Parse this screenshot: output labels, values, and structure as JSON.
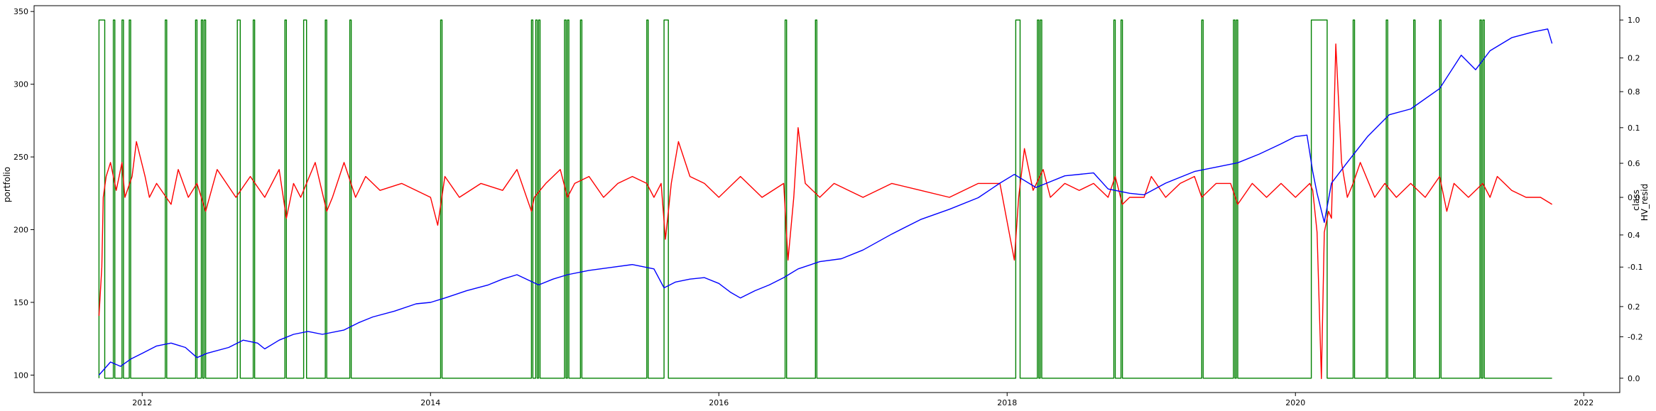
{
  "chart_data": {
    "type": "line",
    "title": "",
    "x_ticks": [
      "2012",
      "2014",
      "2016",
      "2018",
      "2020",
      "2022"
    ],
    "x_range": [
      2011.25,
      2022.25
    ],
    "left_axis": {
      "label": "portfolio",
      "ticks": [
        "100",
        "150",
        "200",
        "250",
        "300",
        "350"
      ],
      "range": [
        88,
        354
      ]
    },
    "right_axis_outer": {
      "label": "class",
      "ticks": [
        "0.0",
        "0.2",
        "0.4",
        "0.6",
        "0.8",
        "1.0"
      ],
      "range": [
        -0.04,
        1.04
      ]
    },
    "right_axis_inner": {
      "label": "HV_resid",
      "ticks": [
        "-0.2",
        "-0.1",
        "0.0",
        "0.1",
        "0.2"
      ],
      "range": [
        -0.28,
        0.275
      ]
    },
    "series": [
      {
        "name": "",
        "axis": "left",
        "color": "#0000ff",
        "x": [
          2011.7,
          2011.78,
          2011.85,
          2011.92,
          2012.0,
          2012.1,
          2012.2,
          2012.3,
          2012.38,
          2012.45,
          2012.6,
          2012.7,
          2012.8,
          2012.85,
          2012.95,
          2013.05,
          2013.15,
          2013.25,
          2013.4,
          2013.5,
          2013.6,
          2013.75,
          2013.9,
          2014.0,
          2014.1,
          2014.25,
          2014.4,
          2014.5,
          2014.6,
          2014.75,
          2014.85,
          2014.95,
          2015.1,
          2015.25,
          2015.4,
          2015.55,
          2015.62,
          2015.7,
          2015.8,
          2015.9,
          2016.0,
          2016.08,
          2016.15,
          2016.25,
          2016.35,
          2016.45,
          2016.55,
          2016.7,
          2016.85,
          2017.0,
          2017.2,
          2017.4,
          2017.6,
          2017.8,
          2017.95,
          2018.05,
          2018.2,
          2018.4,
          2018.6,
          2018.7,
          2018.85,
          2018.95,
          2019.1,
          2019.3,
          2019.45,
          2019.6,
          2019.75,
          2019.9,
          2020.0,
          2020.08,
          2020.12,
          2020.15,
          2020.2,
          2020.25,
          2020.35,
          2020.5,
          2020.65,
          2020.8,
          2021.0,
          2021.15,
          2021.25,
          2021.35,
          2021.5,
          2021.65,
          2021.75,
          2021.78
        ],
        "values": [
          100,
          109,
          106,
          111,
          115,
          120,
          122,
          119,
          112,
          115,
          119,
          124,
          122,
          118,
          124,
          128,
          130,
          128,
          131,
          136,
          140,
          144,
          149,
          150,
          153,
          158,
          162,
          166,
          169,
          162,
          166,
          169,
          172,
          174,
          176,
          173,
          160,
          164,
          166,
          167,
          163,
          157,
          153,
          158,
          162,
          167,
          173,
          178,
          180,
          186,
          197,
          207,
          214,
          222,
          232,
          238,
          229,
          237,
          239,
          228,
          225,
          224,
          232,
          240,
          243,
          246,
          252,
          259,
          264,
          265,
          240,
          225,
          205,
          232,
          245,
          264,
          279,
          283,
          297,
          320,
          310,
          323,
          332,
          336,
          338,
          328
        ]
      },
      {
        "name": "",
        "axis": "inner",
        "color": "#ff0000",
        "x": [
          2011.7,
          2011.72,
          2011.73,
          2011.75,
          2011.78,
          2011.82,
          2011.86,
          2011.88,
          2011.93,
          2011.96,
          2012.02,
          2012.05,
          2012.1,
          2012.2,
          2012.25,
          2012.32,
          2012.38,
          2012.44,
          2012.52,
          2012.65,
          2012.75,
          2012.85,
          2012.95,
          2013.0,
          2013.05,
          2013.1,
          2013.2,
          2013.28,
          2013.32,
          2013.4,
          2013.48,
          2013.55,
          2013.65,
          2013.8,
          2014.0,
          2014.05,
          2014.1,
          2014.2,
          2014.35,
          2014.5,
          2014.6,
          2014.7,
          2014.72,
          2014.8,
          2014.9,
          2014.95,
          2015.0,
          2015.1,
          2015.2,
          2015.3,
          2015.4,
          2015.5,
          2015.55,
          2015.6,
          2015.63,
          2015.67,
          2015.72,
          2015.8,
          2015.9,
          2016.0,
          2016.15,
          2016.3,
          2016.45,
          2016.48,
          2016.52,
          2016.55,
          2016.6,
          2016.7,
          2016.8,
          2016.9,
          2017.0,
          2017.2,
          2017.4,
          2017.6,
          2017.8,
          2017.95,
          2018.05,
          2018.08,
          2018.12,
          2018.18,
          2018.25,
          2018.3,
          2018.4,
          2018.5,
          2018.6,
          2018.7,
          2018.75,
          2018.8,
          2018.85,
          2018.95,
          2019.0,
          2019.1,
          2019.2,
          2019.3,
          2019.35,
          2019.45,
          2019.55,
          2019.6,
          2019.7,
          2019.8,
          2019.9,
          2020.0,
          2020.1,
          2020.12,
          2020.15,
          2020.18,
          2020.2,
          2020.23,
          2020.25,
          2020.28,
          2020.32,
          2020.36,
          2020.4,
          2020.45,
          2020.55,
          2020.62,
          2020.7,
          2020.8,
          2020.9,
          2021.0,
          2021.05,
          2021.1,
          2021.2,
          2021.3,
          2021.35,
          2021.4,
          2021.5,
          2021.6,
          2021.7,
          2021.78
        ],
        "values": [
          -0.17,
          -0.1,
          0.0,
          0.03,
          0.05,
          0.01,
          0.05,
          0.0,
          0.03,
          0.08,
          0.03,
          0.0,
          0.02,
          -0.01,
          0.04,
          0.0,
          0.02,
          -0.02,
          0.04,
          0.0,
          0.03,
          0.0,
          0.04,
          -0.03,
          0.02,
          0.0,
          0.05,
          -0.02,
          0.0,
          0.05,
          0.0,
          0.03,
          0.01,
          0.02,
          0.0,
          -0.04,
          0.03,
          0.0,
          0.02,
          0.01,
          0.04,
          -0.02,
          0.0,
          0.02,
          0.04,
          0.0,
          0.02,
          0.03,
          0.0,
          0.02,
          0.03,
          0.02,
          0.0,
          0.02,
          -0.06,
          0.02,
          0.08,
          0.03,
          0.02,
          0.0,
          0.03,
          0.0,
          0.02,
          -0.09,
          0.0,
          0.1,
          0.02,
          0.0,
          0.02,
          0.01,
          0.0,
          0.02,
          0.01,
          0.0,
          0.02,
          0.02,
          -0.09,
          0.0,
          0.07,
          0.01,
          0.04,
          0.0,
          0.02,
          0.01,
          0.02,
          0.0,
          0.03,
          -0.01,
          0.0,
          0.0,
          0.03,
          0.0,
          0.02,
          0.03,
          0.0,
          0.02,
          0.02,
          -0.01,
          0.02,
          0.0,
          0.02,
          0.0,
          0.02,
          0.01,
          -0.05,
          -0.26,
          -0.05,
          -0.02,
          -0.03,
          0.22,
          0.05,
          0.0,
          0.02,
          0.05,
          0.0,
          0.02,
          0.0,
          0.02,
          0.0,
          0.03,
          -0.02,
          0.02,
          0.0,
          0.02,
          0.0,
          0.03,
          0.01,
          0.0,
          0.0,
          -0.01
        ]
      },
      {
        "name": "",
        "axis": "outer",
        "color": "#008000",
        "step": true,
        "x_range": [
          2011.7,
          2021.78
        ],
        "on_intervals": [
          [
            2011.7,
            2011.74
          ],
          [
            2011.8,
            2011.81
          ],
          [
            2011.86,
            2011.87
          ],
          [
            2011.91,
            2011.92
          ],
          [
            2012.16,
            2012.17
          ],
          [
            2012.37,
            2012.38
          ],
          [
            2012.41,
            2012.42
          ],
          [
            2012.43,
            2012.44
          ],
          [
            2012.66,
            2012.68
          ],
          [
            2012.77,
            2012.78
          ],
          [
            2012.99,
            2013.0
          ],
          [
            2013.12,
            2013.14
          ],
          [
            2013.27,
            2013.28
          ],
          [
            2013.44,
            2013.45
          ],
          [
            2014.07,
            2014.08
          ],
          [
            2014.7,
            2014.71
          ],
          [
            2014.73,
            2014.74
          ],
          [
            2014.75,
            2014.76
          ],
          [
            2014.93,
            2014.94
          ],
          [
            2014.95,
            2014.96
          ],
          [
            2015.04,
            2015.05
          ],
          [
            2015.5,
            2015.51
          ],
          [
            2015.62,
            2015.65
          ],
          [
            2016.46,
            2016.47
          ],
          [
            2016.67,
            2016.68
          ],
          [
            2018.06,
            2018.09
          ],
          [
            2018.21,
            2018.22
          ],
          [
            2018.23,
            2018.24
          ],
          [
            2018.74,
            2018.75
          ],
          [
            2018.79,
            2018.8
          ],
          [
            2019.35,
            2019.36
          ],
          [
            2019.57,
            2019.58
          ],
          [
            2019.59,
            2019.6
          ],
          [
            2020.11,
            2020.22
          ],
          [
            2020.4,
            2020.41
          ],
          [
            2020.63,
            2020.64
          ],
          [
            2020.82,
            2020.83
          ],
          [
            2021.0,
            2021.01
          ],
          [
            2021.28,
            2021.29
          ],
          [
            2021.3,
            2021.31
          ]
        ]
      }
    ]
  }
}
